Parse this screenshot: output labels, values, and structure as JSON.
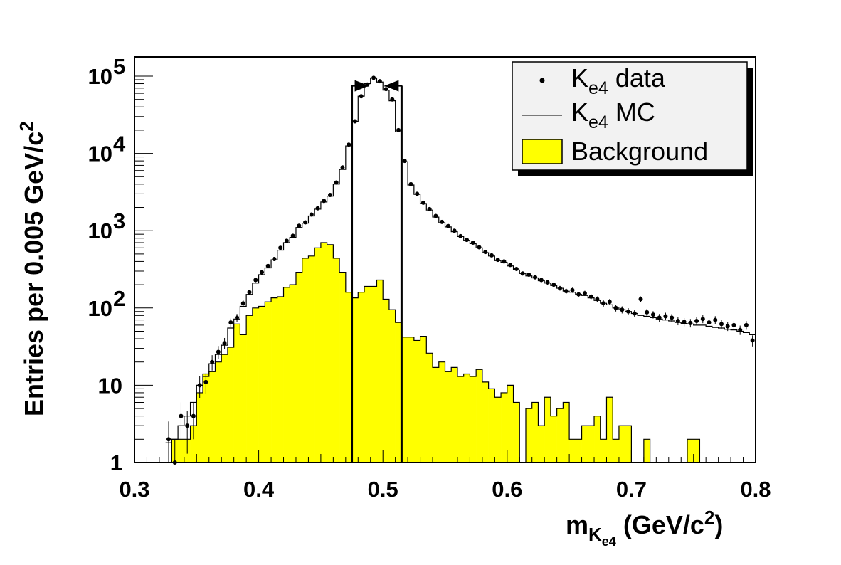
{
  "chart_data": {
    "type": "bar",
    "title": "",
    "xlabel": {
      "main": "m",
      "sub1": "K",
      "sub2": "e4",
      "units_pre": " (GeV/c",
      "units_sup": "2",
      "units_post": ")"
    },
    "ylabel": {
      "main": "Entries per 0.005 GeV/c",
      "sup": "2"
    },
    "xlim": [
      0.3,
      0.8
    ],
    "ylim": [
      1,
      150000
    ],
    "yscale": "log",
    "grid": false,
    "legend_position": "top-right",
    "x_ticks": [
      {
        "value": 0.3,
        "label": "0.3"
      },
      {
        "value": 0.4,
        "label": "0.4"
      },
      {
        "value": 0.5,
        "label": "0.5"
      },
      {
        "value": 0.6,
        "label": "0.6"
      },
      {
        "value": 0.7,
        "label": "0.7"
      },
      {
        "value": 0.8,
        "label": "0.8"
      }
    ],
    "y_ticks": [
      {
        "value": 1,
        "base": "1",
        "exp": ""
      },
      {
        "value": 10,
        "base": "10",
        "exp": ""
      },
      {
        "value": 100,
        "base": "10",
        "exp": "2"
      },
      {
        "value": 1000,
        "base": "10",
        "exp": "3"
      },
      {
        "value": 10000,
        "base": "10",
        "exp": "4"
      },
      {
        "value": 100000,
        "base": "10",
        "exp": "5"
      }
    ],
    "legend": [
      {
        "key": "data",
        "main": "K",
        "sub": "e4",
        "rest": " data"
      },
      {
        "key": "mc",
        "main": "K",
        "sub": "e4",
        "rest": " MC"
      },
      {
        "key": "bkg",
        "main": "Background",
        "sub": "",
        "rest": ""
      }
    ],
    "signal_window": {
      "low": 0.475,
      "high": 0.515,
      "line_top": 75000
    },
    "bin_width": 0.005,
    "bin_start": 0.325,
    "series": [
      {
        "key": "data",
        "style": "points",
        "x": [
          0.3275,
          0.3325,
          0.3375,
          0.3425,
          0.3475,
          0.3525,
          0.3575,
          0.3625,
          0.3675,
          0.3725,
          0.3775,
          0.3825,
          0.3875,
          0.3925,
          0.3975,
          0.4025,
          0.4075,
          0.4125,
          0.4175,
          0.4225,
          0.4275,
          0.4325,
          0.4375,
          0.4425,
          0.4475,
          0.4525,
          0.4575,
          0.4625,
          0.4675,
          0.4725,
          0.4775,
          0.4825,
          0.4875,
          0.4925,
          0.4975,
          0.5025,
          0.5075,
          0.5125,
          0.5175,
          0.5225,
          0.5275,
          0.5325,
          0.5375,
          0.5425,
          0.5475,
          0.5525,
          0.5575,
          0.5625,
          0.5675,
          0.5725,
          0.5775,
          0.5825,
          0.5875,
          0.5925,
          0.5975,
          0.6025,
          0.6075,
          0.6125,
          0.6175,
          0.6225,
          0.6275,
          0.6325,
          0.6375,
          0.6425,
          0.6475,
          0.6525,
          0.6575,
          0.6625,
          0.6675,
          0.6725,
          0.6775,
          0.6825,
          0.6875,
          0.6925,
          0.6975,
          0.7025,
          0.7075,
          0.7125,
          0.7175,
          0.7225,
          0.7275,
          0.7325,
          0.7375,
          0.7425,
          0.7475,
          0.7525,
          0.7575,
          0.7625,
          0.7675,
          0.7725,
          0.7775,
          0.7825,
          0.7875,
          0.7925,
          0.7975
        ],
        "y": [
          2,
          1,
          4,
          3,
          4,
          10,
          11,
          20,
          27,
          35,
          65,
          75,
          115,
          160,
          230,
          290,
          350,
          430,
          600,
          740,
          860,
          1160,
          1280,
          1620,
          1950,
          2430,
          2900,
          4200,
          6600,
          13000,
          26000,
          55000,
          78000,
          95000,
          86000,
          68000,
          50000,
          20000,
          8000,
          4000,
          3000,
          2300,
          1900,
          1550,
          1300,
          1150,
          1000,
          850,
          760,
          700,
          610,
          530,
          480,
          420,
          400,
          360,
          320,
          280,
          270,
          250,
          230,
          215,
          200,
          180,
          165,
          170,
          150,
          155,
          140,
          130,
          115,
          120,
          100,
          95,
          90,
          85,
          130,
          88,
          82,
          75,
          78,
          75,
          68,
          66,
          64,
          68,
          72,
          65,
          70,
          62,
          58,
          60,
          52,
          60,
          38
        ],
        "err": [
          1.4,
          1,
          2,
          1.7,
          2,
          3.2,
          3.3,
          4.5,
          5.2,
          5.9,
          8,
          8.7,
          10.7,
          12.6,
          15,
          17,
          18.7,
          20.7,
          24.5,
          27,
          29.3,
          34,
          35.8,
          40,
          44,
          49,
          54,
          65,
          81,
          114,
          161,
          234,
          279,
          308,
          293,
          261,
          224,
          141,
          89,
          63,
          55,
          48,
          44,
          39,
          36,
          34,
          32,
          29,
          28,
          26,
          25,
          23,
          22,
          20,
          20,
          19,
          18,
          17,
          16,
          16,
          15,
          15,
          14,
          13,
          13,
          13,
          12,
          12,
          12,
          11,
          11,
          11,
          10,
          10,
          9.5,
          9.2,
          11,
          9.4,
          9,
          8.7,
          8.8,
          8.7,
          8.2,
          8.1,
          8,
          8.2,
          8.5,
          8.1,
          8.4,
          7.9,
          7.6,
          7.7,
          7.2,
          7.7,
          6.2
        ]
      },
      {
        "key": "mc",
        "style": "step",
        "y": [
          1.8,
          2,
          3,
          4,
          6,
          10,
          13,
          19,
          25,
          33,
          55,
          72,
          105,
          150,
          210,
          270,
          330,
          420,
          560,
          700,
          820,
          1100,
          1250,
          1550,
          1900,
          2350,
          2800,
          4000,
          6200,
          12500,
          26000,
          55000,
          80000,
          95000,
          84000,
          66000,
          48000,
          19000,
          7800,
          3900,
          2950,
          2250,
          1850,
          1500,
          1270,
          1120,
          970,
          840,
          750,
          680,
          600,
          520,
          470,
          410,
          390,
          350,
          310,
          280,
          260,
          245,
          225,
          210,
          195,
          180,
          165,
          160,
          150,
          145,
          135,
          125,
          115,
          110,
          100,
          95,
          90,
          85,
          80,
          78,
          75,
          72,
          70,
          68,
          65,
          63,
          62,
          60,
          60,
          58,
          56,
          55,
          53,
          52,
          50,
          48,
          45
        ]
      },
      {
        "key": "bkg",
        "style": "filled-step",
        "color": "#ffff00",
        "y": [
          0,
          2,
          2,
          2,
          3,
          8,
          14,
          15,
          20,
          25,
          31,
          62,
          45,
          80,
          100,
          105,
          120,
          135,
          140,
          185,
          200,
          290,
          440,
          470,
          600,
          700,
          660,
          440,
          290,
          160,
          135,
          160,
          190,
          190,
          230,
          130,
          95,
          65,
          42,
          42,
          38,
          43,
          26,
          17,
          20,
          15,
          17,
          13,
          14,
          13,
          16,
          11,
          9,
          7,
          8,
          10,
          6,
          1,
          5,
          6,
          3,
          7,
          4,
          5,
          6,
          2,
          2,
          3,
          3,
          4,
          2,
          7,
          2,
          3,
          3,
          1,
          1,
          2,
          1,
          1,
          1,
          1,
          1,
          1,
          2,
          2,
          1,
          1,
          1,
          1,
          1,
          1,
          1,
          1,
          1
        ]
      }
    ]
  }
}
